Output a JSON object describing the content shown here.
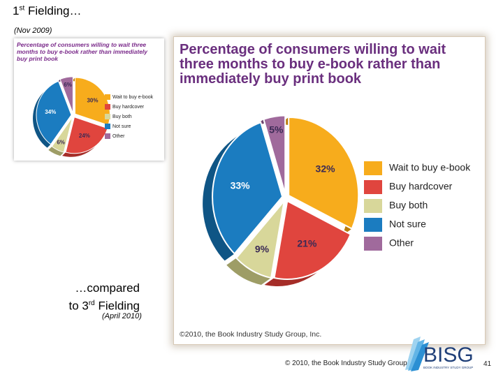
{
  "slide": {
    "title_main": "1",
    "title_sup": "st",
    "title_rest": " Fielding…",
    "date_first": "(Nov 2009)",
    "compare_line1": "…compared",
    "compare_line2_a": "to 3",
    "compare_line2_sup": "rd",
    "compare_line2_b": " Fielding",
    "date_third": "(April 2010)",
    "footer_copyright": "© 2010, the Book Industry Study Group, Ir",
    "page_number": "41",
    "logo_text": "BISG",
    "logo_subtext": "BOOK INDUSTRY STUDY GROUP"
  },
  "chart_data": [
    {
      "type": "pie",
      "title": "Percentage of consumers willing to wait three months to buy e-book rather than immediately buy print book",
      "categories": [
        "Wait to buy e-book",
        "Buy hardcover",
        "Buy both",
        "Not sure",
        "Other"
      ],
      "values": [
        30,
        24,
        6,
        34,
        6
      ],
      "labels": [
        "30%",
        "24%",
        "6%",
        "34%",
        "6%"
      ],
      "legend_position": "right",
      "fielding": "1st (Nov 2009)"
    },
    {
      "type": "pie",
      "title": "Percentage of consumers willing to wait three months to buy e-book rather than immediately buy print book",
      "categories": [
        "Wait to buy e-book",
        "Buy hardcover",
        "Buy both",
        "Not sure",
        "Other"
      ],
      "values": [
        32,
        21,
        9,
        33,
        5
      ],
      "labels": [
        "32%",
        "21%",
        "9%",
        "33%",
        "5%"
      ],
      "legend_position": "right",
      "copyright": "©2010, the Book Industry Study Group, Inc.",
      "fielding": "3rd (April 2010)"
    }
  ],
  "colors": [
    "#f7ac1c",
    "#e0453e",
    "#d8d79a",
    "#1b7cc0",
    "#a06a9c"
  ],
  "dark_colors": [
    "#b97c0e",
    "#a52d28",
    "#9e9d66",
    "#0f5585",
    "#6f4570"
  ]
}
